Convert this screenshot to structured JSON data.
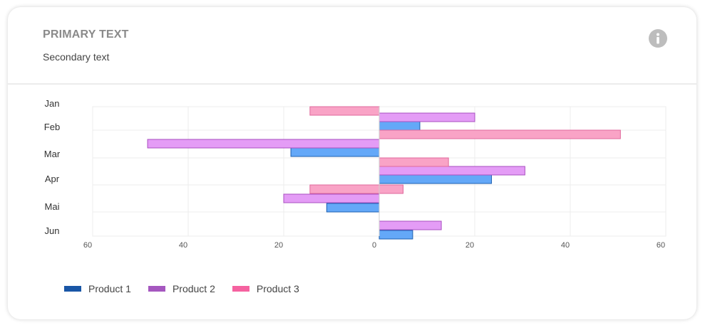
{
  "card": {
    "title": "PRIMARY TEXT",
    "subtitle": "Secondary text",
    "info_icon": "info-icon"
  },
  "colors": {
    "product1_fill": "#64a8f8",
    "product1_stroke": "#1c5fb0",
    "product1_legend": "#1956a6",
    "product2_fill": "#e49cf6",
    "product2_stroke": "#a94fc0",
    "product2_legend": "#a557bf",
    "product3_fill": "#f9a3c6",
    "product3_stroke": "#e06a9c",
    "product3_legend": "#f562a0"
  },
  "chart_data": {
    "type": "bar",
    "orientation": "horizontal",
    "categories": [
      "Jan",
      "Feb",
      "Mar",
      "Apr",
      "Mai",
      "Jun"
    ],
    "series": [
      {
        "name": "Product 1",
        "values": [
          null,
          8.5,
          -18.5,
          23.5,
          -11,
          7
        ]
      },
      {
        "name": "Product 2",
        "values": [
          null,
          20,
          -48.5,
          30.5,
          -20,
          13
        ]
      },
      {
        "name": "Product 3",
        "values": [
          -14.5,
          50.5,
          14.5,
          -14.5,
          5,
          null
        ]
      }
    ],
    "x_ticks": [
      "60",
      "40",
      "20",
      "0",
      "20",
      "40",
      "60"
    ],
    "xlim": [
      -60,
      60
    ],
    "grid": true,
    "legend_position": "bottom-left"
  }
}
